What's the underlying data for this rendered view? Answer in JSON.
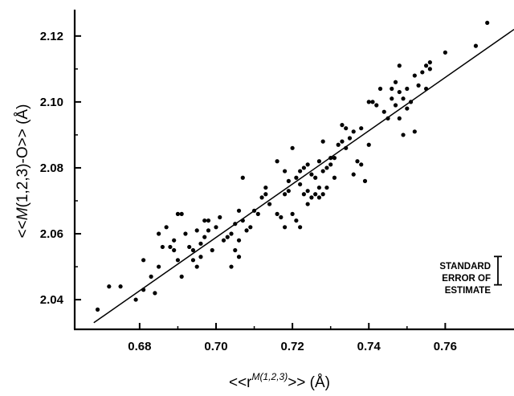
{
  "chart_data": {
    "type": "scatter",
    "xlabel_parts": {
      "base": "<<r",
      "sup": "M(1,2,3)",
      "tail": ">> (Å)"
    },
    "ylabel_parts": {
      "pre": "<<",
      "ital": "M",
      "post": "(1,2,3)-O>> (Å)"
    },
    "xlim": [
      0.663,
      0.778
    ],
    "ylim": [
      2.031,
      2.128
    ],
    "xticks": [
      0.68,
      0.7,
      0.72,
      0.74,
      0.76
    ],
    "xtick_labels": [
      "0.68",
      "0.70",
      "0.72",
      "0.74",
      "0.76"
    ],
    "yticks": [
      2.04,
      2.06,
      2.08,
      2.1,
      2.12
    ],
    "ytick_labels": [
      "2.04",
      "2.06",
      "2.08",
      "2.10",
      "2.12"
    ],
    "grid": false,
    "regression_line": {
      "x": [
        0.668,
        0.778
      ],
      "y": [
        2.033,
        2.122
      ]
    },
    "annotation": {
      "lines": [
        "STANDARD",
        "ERROR OF",
        "ESTIMATE"
      ],
      "error_bar_halfwidth": 0.0043
    },
    "points": [
      [
        0.669,
        2.037
      ],
      [
        0.672,
        2.044
      ],
      [
        0.675,
        2.044
      ],
      [
        0.679,
        2.04
      ],
      [
        0.681,
        2.043
      ],
      [
        0.681,
        2.052
      ],
      [
        0.683,
        2.047
      ],
      [
        0.684,
        2.042
      ],
      [
        0.685,
        2.05
      ],
      [
        0.685,
        2.06
      ],
      [
        0.686,
        2.056
      ],
      [
        0.687,
        2.062
      ],
      [
        0.688,
        2.056
      ],
      [
        0.689,
        2.055
      ],
      [
        0.689,
        2.058
      ],
      [
        0.69,
        2.066
      ],
      [
        0.69,
        2.052
      ],
      [
        0.691,
        2.066
      ],
      [
        0.691,
        2.047
      ],
      [
        0.692,
        2.06
      ],
      [
        0.693,
        2.056
      ],
      [
        0.694,
        2.055
      ],
      [
        0.694,
        2.052
      ],
      [
        0.695,
        2.061
      ],
      [
        0.695,
        2.05
      ],
      [
        0.696,
        2.057
      ],
      [
        0.696,
        2.053
      ],
      [
        0.697,
        2.064
      ],
      [
        0.697,
        2.059
      ],
      [
        0.698,
        2.061
      ],
      [
        0.698,
        2.064
      ],
      [
        0.699,
        2.055
      ],
      [
        0.7,
        2.062
      ],
      [
        0.701,
        2.065
      ],
      [
        0.702,
        2.058
      ],
      [
        0.703,
        2.059
      ],
      [
        0.704,
        2.06
      ],
      [
        0.704,
        2.05
      ],
      [
        0.705,
        2.063
      ],
      [
        0.705,
        2.055
      ],
      [
        0.706,
        2.067
      ],
      [
        0.706,
        2.058
      ],
      [
        0.706,
        2.053
      ],
      [
        0.707,
        2.064
      ],
      [
        0.707,
        2.077
      ],
      [
        0.708,
        2.061
      ],
      [
        0.709,
        2.062
      ],
      [
        0.71,
        2.067
      ],
      [
        0.711,
        2.066
      ],
      [
        0.712,
        2.071
      ],
      [
        0.713,
        2.074
      ],
      [
        0.713,
        2.072
      ],
      [
        0.714,
        2.069
      ],
      [
        0.716,
        2.082
      ],
      [
        0.716,
        2.066
      ],
      [
        0.717,
        2.065
      ],
      [
        0.718,
        2.072
      ],
      [
        0.718,
        2.079
      ],
      [
        0.718,
        2.062
      ],
      [
        0.719,
        2.076
      ],
      [
        0.719,
        2.073
      ],
      [
        0.72,
        2.086
      ],
      [
        0.72,
        2.066
      ],
      [
        0.721,
        2.064
      ],
      [
        0.721,
        2.077
      ],
      [
        0.722,
        2.079
      ],
      [
        0.722,
        2.075
      ],
      [
        0.722,
        2.062
      ],
      [
        0.723,
        2.08
      ],
      [
        0.723,
        2.072
      ],
      [
        0.724,
        2.081
      ],
      [
        0.724,
        2.073
      ],
      [
        0.724,
        2.069
      ],
      [
        0.725,
        2.078
      ],
      [
        0.725,
        2.071
      ],
      [
        0.726,
        2.077
      ],
      [
        0.726,
        2.072
      ],
      [
        0.727,
        2.082
      ],
      [
        0.727,
        2.074
      ],
      [
        0.727,
        2.071
      ],
      [
        0.728,
        2.079
      ],
      [
        0.728,
        2.088
      ],
      [
        0.728,
        2.072
      ],
      [
        0.729,
        2.08
      ],
      [
        0.729,
        2.074
      ],
      [
        0.73,
        2.083
      ],
      [
        0.73,
        2.081
      ],
      [
        0.731,
        2.083
      ],
      [
        0.731,
        2.077
      ],
      [
        0.732,
        2.087
      ],
      [
        0.733,
        2.093
      ],
      [
        0.733,
        2.088
      ],
      [
        0.734,
        2.092
      ],
      [
        0.734,
        2.086
      ],
      [
        0.735,
        2.089
      ],
      [
        0.736,
        2.078
      ],
      [
        0.736,
        2.091
      ],
      [
        0.737,
        2.082
      ],
      [
        0.738,
        2.081
      ],
      [
        0.738,
        2.092
      ],
      [
        0.739,
        2.076
      ],
      [
        0.74,
        2.1
      ],
      [
        0.74,
        2.087
      ],
      [
        0.741,
        2.1
      ],
      [
        0.742,
        2.099
      ],
      [
        0.743,
        2.104
      ],
      [
        0.744,
        2.097
      ],
      [
        0.745,
        2.095
      ],
      [
        0.746,
        2.101
      ],
      [
        0.746,
        2.104
      ],
      [
        0.747,
        2.106
      ],
      [
        0.747,
        2.099
      ],
      [
        0.748,
        2.111
      ],
      [
        0.748,
        2.103
      ],
      [
        0.748,
        2.095
      ],
      [
        0.749,
        2.09
      ],
      [
        0.749,
        2.101
      ],
      [
        0.75,
        2.104
      ],
      [
        0.75,
        2.098
      ],
      [
        0.751,
        2.1
      ],
      [
        0.752,
        2.108
      ],
      [
        0.752,
        2.091
      ],
      [
        0.753,
        2.105
      ],
      [
        0.754,
        2.109
      ],
      [
        0.755,
        2.104
      ],
      [
        0.755,
        2.111
      ],
      [
        0.756,
        2.112
      ],
      [
        0.756,
        2.11
      ],
      [
        0.76,
        2.115
      ],
      [
        0.768,
        2.117
      ],
      [
        0.771,
        2.124
      ]
    ]
  }
}
